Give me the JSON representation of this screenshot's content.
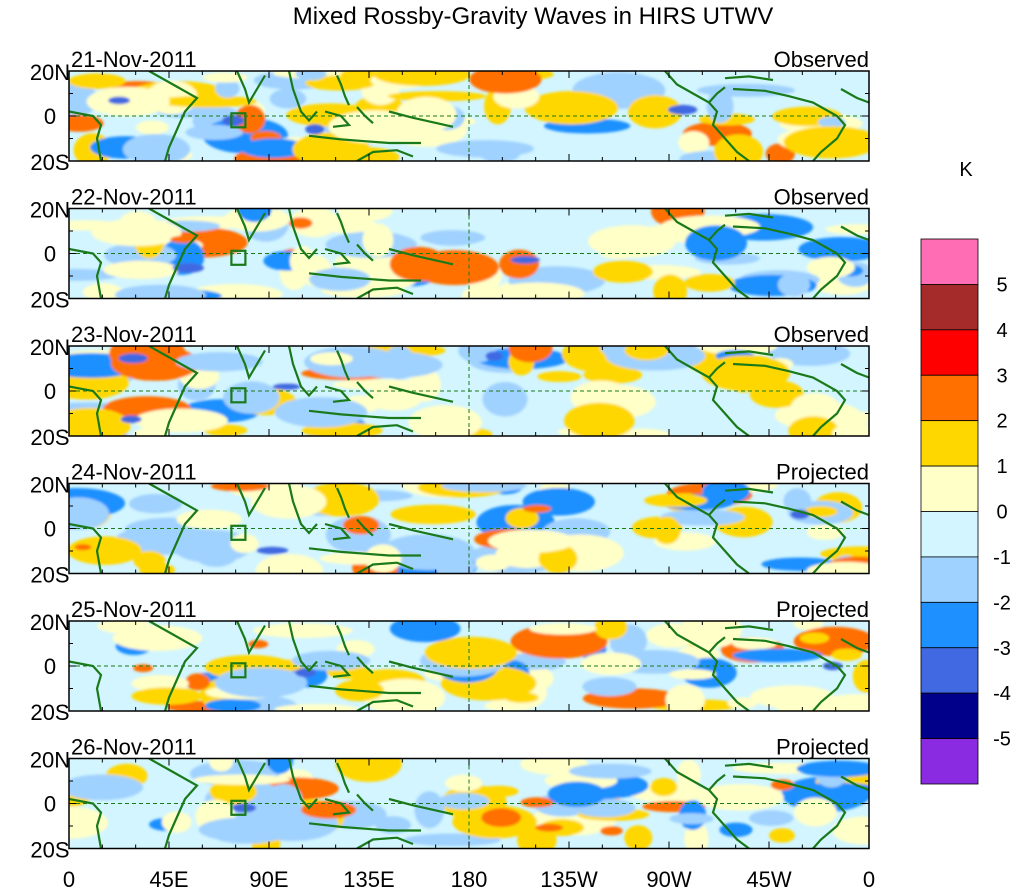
{
  "chart_data": {
    "type": "heatmap",
    "title": "Mixed Rossby-Gravity Waves in HIRS UTWV",
    "units": "K",
    "latitude_ticks": [
      "20N",
      "0",
      "20S"
    ],
    "longitude_ticks": [
      "0",
      "45E",
      "90E",
      "135E",
      "180",
      "135W",
      "90W",
      "45W",
      "0"
    ],
    "longitude_range": [
      0,
      360
    ],
    "latitude_range": [
      -20,
      20
    ],
    "colorbar": {
      "labels": [
        "5",
        "4",
        "3",
        "2",
        "1",
        "0",
        "-1",
        "-2",
        "-3",
        "-4",
        "-5"
      ],
      "colors": [
        "#ff6eb4",
        "#a52a2a",
        "#ff0000",
        "#ff7000",
        "#ffd700",
        "#ffffc8",
        "#d2f5ff",
        "#a0d2ff",
        "#1e90ff",
        "#4169e1",
        "#00008b",
        "#8a2be2"
      ]
    },
    "panels": [
      {
        "date": "21-Nov-2011",
        "label": "Observed"
      },
      {
        "date": "22-Nov-2011",
        "label": "Observed"
      },
      {
        "date": "23-Nov-2011",
        "label": "Observed"
      },
      {
        "date": "24-Nov-2011",
        "label": "Projected"
      },
      {
        "date": "25-Nov-2011",
        "label": "Projected"
      },
      {
        "date": "26-Nov-2011",
        "label": "Projected"
      }
    ]
  }
}
